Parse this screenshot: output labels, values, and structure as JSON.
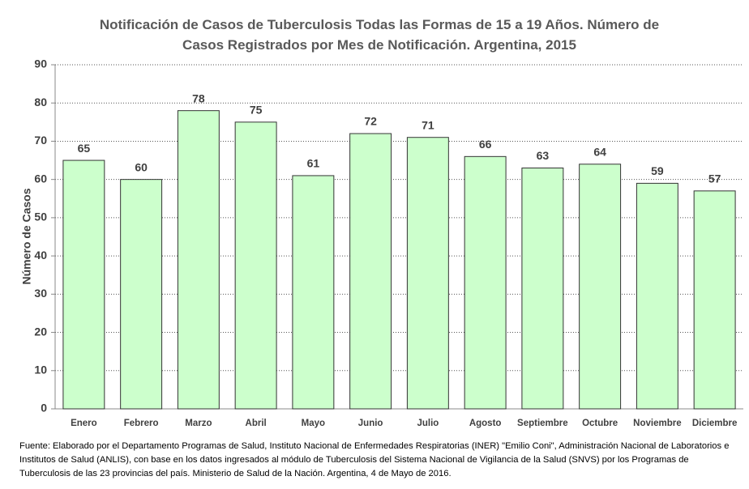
{
  "chart_data": {
    "type": "bar",
    "title": "Notificación de Casos de Tuberculosis Todas las Formas de 15 a 19 Años. Número de Casos Registrados por Mes de Notificación. Argentina, 2015",
    "y_label": "Número de Casos",
    "categories": [
      "Enero",
      "Febrero",
      "Marzo",
      "Abril",
      "Mayo",
      "Junio",
      "Julio",
      "Agosto",
      "Septiembre",
      "Octubre",
      "Noviembre",
      "Diciembre"
    ],
    "values": [
      65,
      60,
      78,
      75,
      61,
      72,
      71,
      66,
      63,
      64,
      59,
      57
    ],
    "color": "#ccffcc",
    "ylim": [
      0,
      90
    ],
    "yticks": [
      0,
      10,
      20,
      30,
      40,
      50,
      60,
      70,
      80,
      90
    ],
    "grid": true,
    "note": "Fuente: Elaborado por el Departamento Programas de Salud, Instituto Nacional de Enfermedades Respiratorias (INER) \"Emilio Coni\", Administración Nacional de Laboratorios e Institutos de Salud (ANLIS), con base en los datos ingresados al módulo de Tuberculosis del Sistema Nacional de Vigilancia de la Salud (SNVS) por los Programas de Tuberculosis de las 23 provincias del país. Ministerio de Salud de la Nación. Argentina,  4 de Mayo de 2016."
  }
}
